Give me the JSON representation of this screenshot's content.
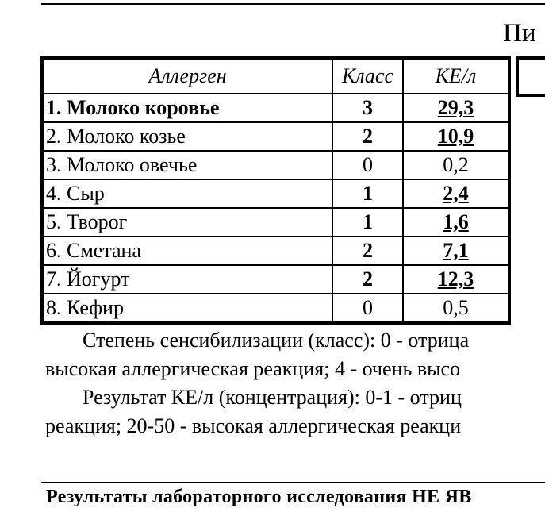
{
  "heading": "Пи",
  "table": {
    "headers": [
      "Аллерген",
      "Класс",
      "КЕ/л"
    ],
    "rows": [
      {
        "allergen": "1. Молоко коровье",
        "class": "3",
        "ke": "29,3",
        "bold_name": true,
        "bold_values": true
      },
      {
        "allergen": "2. Молоко козье",
        "class": "2",
        "ke": "10,9",
        "bold_name": false,
        "bold_values": true
      },
      {
        "allergen": "3. Молоко овечье",
        "class": "0",
        "ke": "0,2",
        "bold_name": false,
        "bold_values": false
      },
      {
        "allergen": "4. Сыр",
        "class": "1",
        "ke": "2,4",
        "bold_name": false,
        "bold_values": true
      },
      {
        "allergen": "5. Творог",
        "class": "1",
        "ke": "1,6",
        "bold_name": false,
        "bold_values": true
      },
      {
        "allergen": "6. Сметана",
        "class": "2",
        "ke": "7,1",
        "bold_name": false,
        "bold_values": true
      },
      {
        "allergen": "7. Йогурт",
        "class": "2",
        "ke": "12,3",
        "bold_name": false,
        "bold_values": true
      },
      {
        "allergen": "8. Кефир",
        "class": "0",
        "ke": "0,5",
        "bold_name": false,
        "bold_values": false
      }
    ]
  },
  "notes": [
    "Степень сенсибилизации (класс): 0 - отрица",
    "высокая аллергическая реакция; 4 - очень высо",
    "Результат КЕ/л (концентрация): 0-1 - отриц",
    "реакция; 20-50 - высокая аллергическая реакци"
  ],
  "footer": "Результаты лабораторного исследования НЕ ЯВ"
}
